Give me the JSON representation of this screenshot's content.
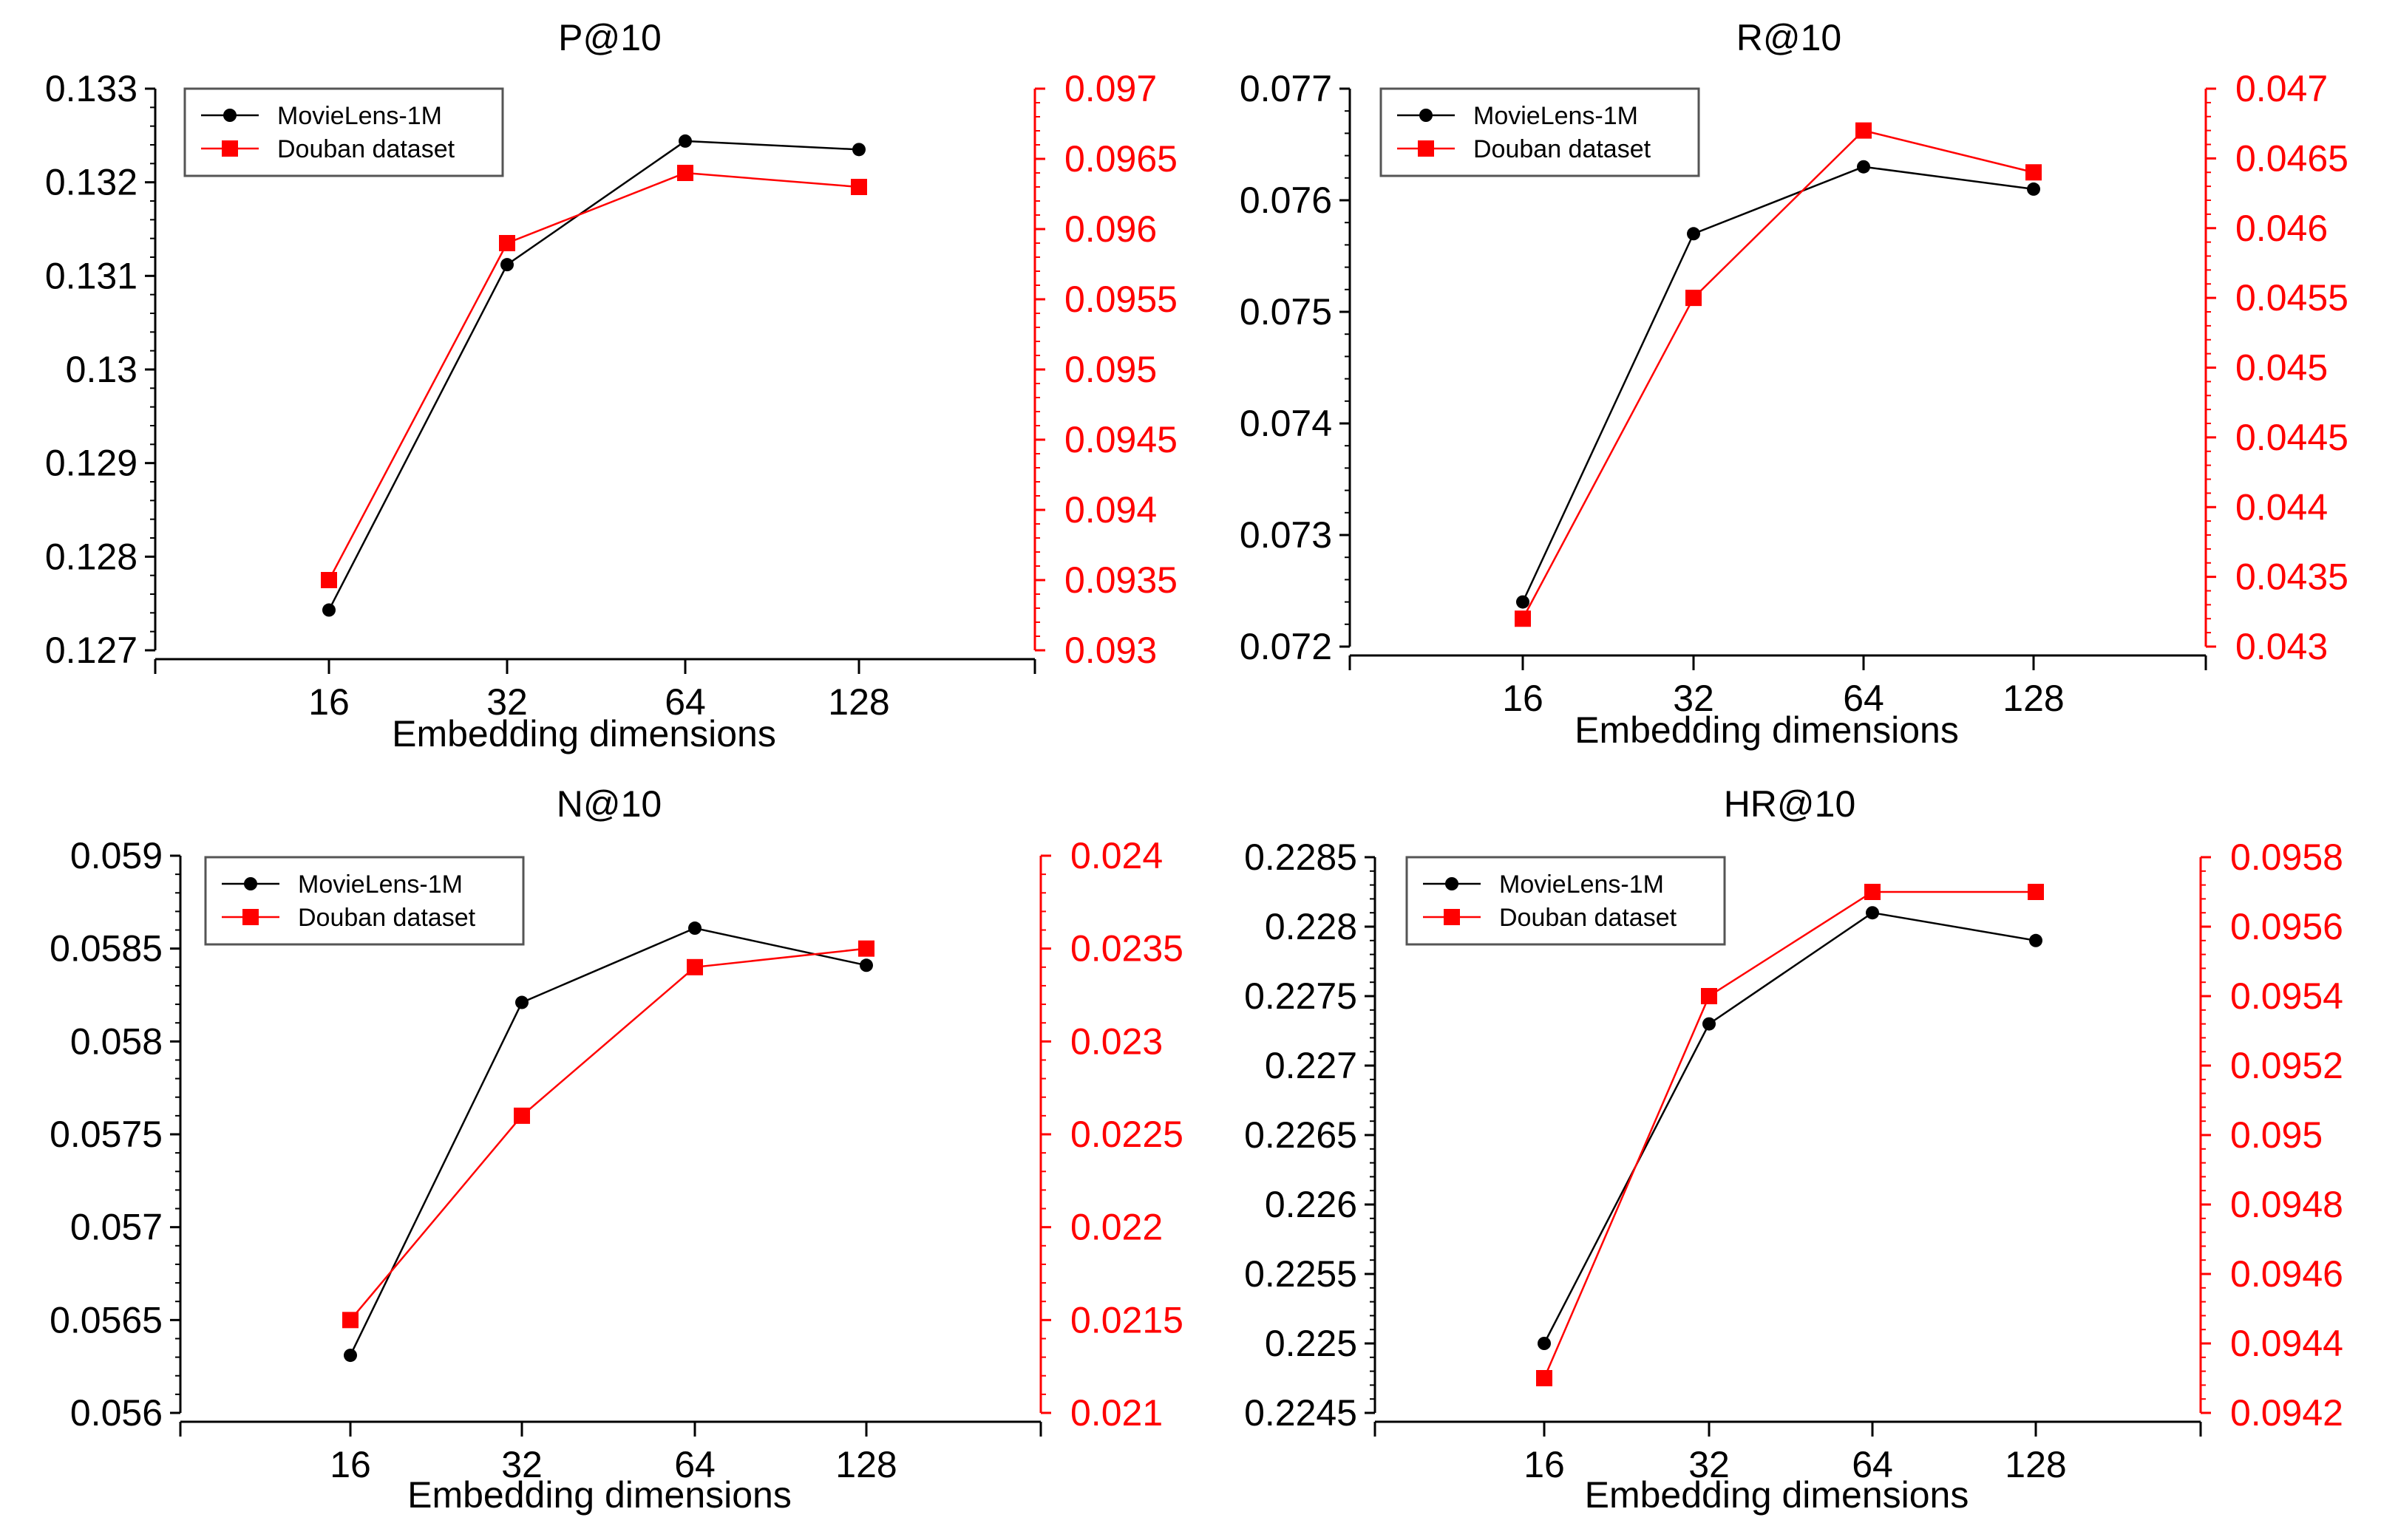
{
  "chart_data": [
    {
      "type": "line",
      "title": "P@10",
      "xlabel": "Embedding dimensions",
      "categories": [
        "16",
        "32",
        "64",
        "128"
      ],
      "left_axis": {
        "ylim": [
          0.127,
          0.133
        ],
        "ticks": [
          "0.127",
          "0.128",
          "0.129",
          "0.13",
          "0.131",
          "0.132",
          "0.133"
        ]
      },
      "right_axis": {
        "ylim": [
          0.093,
          0.097
        ],
        "ticks": [
          "0.093",
          "0.0935",
          "0.094",
          "0.0945",
          "0.095",
          "0.0955",
          "0.096",
          "0.0965",
          "0.097"
        ]
      },
      "series": [
        {
          "name": "MovieLens-1M",
          "axis": "left",
          "color": "#000000",
          "marker": "circle",
          "values": [
            0.12743,
            0.13112,
            0.13244,
            0.13235
          ]
        },
        {
          "name": "Douban dataset",
          "axis": "right",
          "color": "#ff0000",
          "marker": "square",
          "values": [
            0.0935,
            0.0959,
            0.0964,
            0.0963
          ]
        }
      ],
      "legend": "top-left"
    },
    {
      "type": "line",
      "title": "R@10",
      "xlabel": "Embedding dimensions",
      "categories": [
        "16",
        "32",
        "64",
        "128"
      ],
      "left_axis": {
        "ylim": [
          0.072,
          0.077
        ],
        "ticks": [
          "0.072",
          "0.073",
          "0.074",
          "0.075",
          "0.076",
          "0.077"
        ]
      },
      "right_axis": {
        "ylim": [
          0.043,
          0.047
        ],
        "ticks": [
          "0.043",
          "0.0435",
          "0.044",
          "0.0445",
          "0.045",
          "0.0455",
          "0.046",
          "0.0465",
          "0.047"
        ]
      },
      "series": [
        {
          "name": "MovieLens-1M",
          "axis": "left",
          "color": "#000000",
          "marker": "circle",
          "values": [
            0.0724,
            0.0757,
            0.0763,
            0.0761
          ]
        },
        {
          "name": "Douban dataset",
          "axis": "right",
          "color": "#ff0000",
          "marker": "square",
          "values": [
            0.0432,
            0.0455,
            0.0467,
            0.0464
          ]
        }
      ],
      "legend": "top-left"
    },
    {
      "type": "line",
      "title": "N@10",
      "xlabel": "Embedding dimensions",
      "categories": [
        "16",
        "32",
        "64",
        "128"
      ],
      "left_axis": {
        "ylim": [
          0.056,
          0.059
        ],
        "ticks": [
          "0.056",
          "0.0565",
          "0.057",
          "0.0575",
          "0.058",
          "0.0585",
          "0.059"
        ]
      },
      "right_axis": {
        "ylim": [
          0.021,
          0.024
        ],
        "ticks": [
          "0.021",
          "0.0215",
          "0.022",
          "0.0225",
          "0.023",
          "0.0235",
          "0.024"
        ]
      },
      "series": [
        {
          "name": "MovieLens-1M",
          "axis": "left",
          "color": "#000000",
          "marker": "circle",
          "values": [
            0.05631,
            0.05821,
            0.05861,
            0.05841
          ]
        },
        {
          "name": "Douban dataset",
          "axis": "right",
          "color": "#ff0000",
          "marker": "square",
          "values": [
            0.0215,
            0.0226,
            0.0234,
            0.0235
          ]
        }
      ],
      "legend": "top-left"
    },
    {
      "type": "line",
      "title": "HR@10",
      "xlabel": "Embedding dimensions",
      "categories": [
        "16",
        "32",
        "64",
        "128"
      ],
      "left_axis": {
        "ylim": [
          0.2245,
          0.2285
        ],
        "ticks": [
          "0.2245",
          "0.225",
          "0.2255",
          "0.226",
          "0.2265",
          "0.227",
          "0.2275",
          "0.228",
          "0.2285"
        ]
      },
      "right_axis": {
        "ylim": [
          0.0942,
          0.0958
        ],
        "ticks": [
          "0.0942",
          "0.0944",
          "0.0946",
          "0.0948",
          "0.095",
          "0.0952",
          "0.0954",
          "0.0956",
          "0.0958"
        ]
      },
      "series": [
        {
          "name": "MovieLens-1M",
          "axis": "left",
          "color": "#000000",
          "marker": "circle",
          "values": [
            0.225,
            0.2273,
            0.2281,
            0.2279
          ]
        },
        {
          "name": "Douban dataset",
          "axis": "right",
          "color": "#ff0000",
          "marker": "square",
          "values": [
            0.0943,
            0.0954,
            0.0957,
            0.0957
          ]
        }
      ],
      "legend": "top-left"
    }
  ]
}
